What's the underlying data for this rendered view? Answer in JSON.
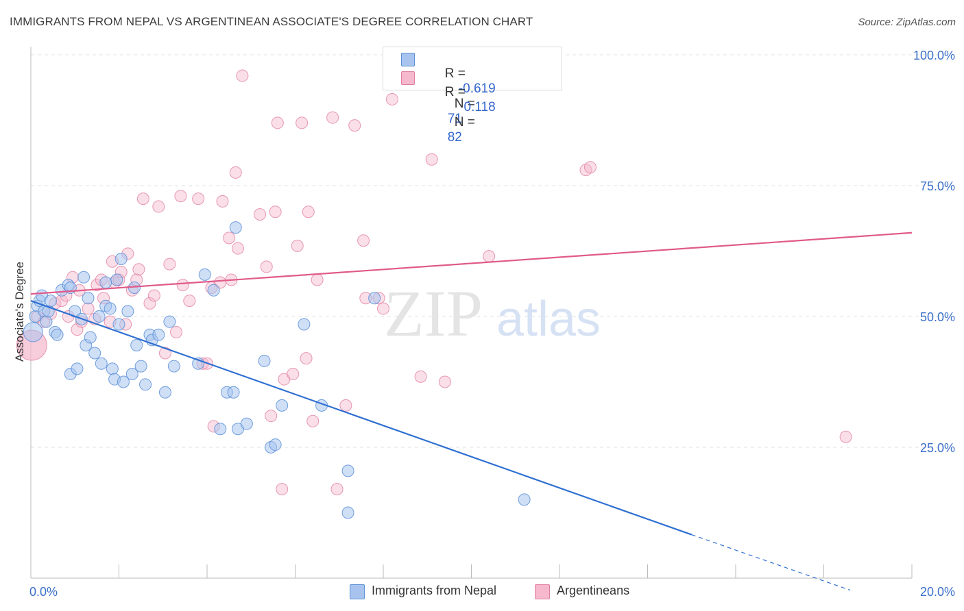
{
  "header": {
    "title": "IMMIGRANTS FROM NEPAL VS ARGENTINEAN ASSOCIATE'S DEGREE CORRELATION CHART",
    "source": "Source: ZipAtlas.com"
  },
  "legend": {
    "rows": [
      {
        "r_label": "R =",
        "r_value": "-0.619",
        "n_label": "N =",
        "n_value": "71"
      },
      {
        "r_label": "R =",
        "r_value": "0.118",
        "n_label": "N =",
        "n_value": "82"
      }
    ],
    "bottom": [
      "Immigrants from Nepal",
      "Argentineans"
    ]
  },
  "watermark": {
    "zip": "ZIP",
    "atlas": "atlas"
  },
  "colors": {
    "nepal_fill": "#a8c4ee",
    "nepal_stroke": "#5b8fd8",
    "nepal_line": "#2e6fd1",
    "arg_fill": "#f5b8cc",
    "arg_stroke": "#e27fa0",
    "arg_line": "#e05a8a",
    "tick_label": "#3a70c8"
  },
  "chart_data": {
    "type": "scatter",
    "title": "IMMIGRANTS FROM NEPAL VS ARGENTINEAN ASSOCIATE'S DEGREE CORRELATION CHART",
    "xlabel": "",
    "ylabel": "Associate's Degree",
    "xlim": [
      0,
      20
    ],
    "ylim": [
      0,
      105
    ],
    "x_tick_labels": [
      "0.0%",
      "20.0%"
    ],
    "y_ticks": [
      25,
      50,
      75,
      100
    ],
    "y_tick_labels": [
      "25.0%",
      "50.0%",
      "75.0%",
      "100.0%"
    ],
    "grid": true,
    "legend_position": "top-center",
    "series": [
      {
        "name": "Immigrants from Nepal",
        "r": -0.619,
        "n": 71,
        "trendline": {
          "x": [
            0,
            15
          ],
          "y": [
            53.0,
            8.3
          ],
          "dashed_to": {
            "x": 18.6,
            "y": -2.3
          }
        },
        "points": [
          [
            0.05,
            47
          ],
          [
            0.1,
            50
          ],
          [
            0.15,
            52
          ],
          [
            0.2,
            53
          ],
          [
            0.25,
            54
          ],
          [
            0.3,
            51
          ],
          [
            0.35,
            49
          ],
          [
            0.4,
            51
          ],
          [
            0.45,
            53
          ],
          [
            0.55,
            47
          ],
          [
            0.6,
            46.5
          ],
          [
            0.7,
            55
          ],
          [
            0.85,
            56
          ],
          [
            0.9,
            55.5
          ],
          [
            0.9,
            39
          ],
          [
            1.0,
            51
          ],
          [
            1.05,
            40
          ],
          [
            1.15,
            49.5
          ],
          [
            1.2,
            57.5
          ],
          [
            1.25,
            44.5
          ],
          [
            1.3,
            53.5
          ],
          [
            1.35,
            46
          ],
          [
            1.45,
            43
          ],
          [
            1.55,
            50
          ],
          [
            1.6,
            41
          ],
          [
            1.7,
            56.5
          ],
          [
            1.7,
            52
          ],
          [
            1.8,
            51.5
          ],
          [
            1.85,
            40
          ],
          [
            1.9,
            38
          ],
          [
            1.95,
            57
          ],
          [
            2.0,
            48.5
          ],
          [
            2.05,
            61
          ],
          [
            2.1,
            37.5
          ],
          [
            2.2,
            51
          ],
          [
            2.3,
            39
          ],
          [
            2.35,
            55.5
          ],
          [
            2.4,
            44.5
          ],
          [
            2.5,
            40.5
          ],
          [
            2.6,
            37
          ],
          [
            2.7,
            46.5
          ],
          [
            2.75,
            45.5
          ],
          [
            2.9,
            46.5
          ],
          [
            3.05,
            35.5
          ],
          [
            3.15,
            49
          ],
          [
            3.25,
            40.5
          ],
          [
            3.8,
            41
          ],
          [
            3.95,
            58
          ],
          [
            4.15,
            55
          ],
          [
            4.3,
            28.5
          ],
          [
            4.45,
            35.5
          ],
          [
            4.6,
            35.5
          ],
          [
            4.65,
            67
          ],
          [
            4.7,
            28.5
          ],
          [
            4.9,
            29.5
          ],
          [
            5.3,
            41.5
          ],
          [
            5.45,
            25
          ],
          [
            5.55,
            25.5
          ],
          [
            5.7,
            33
          ],
          [
            6.2,
            48.5
          ],
          [
            6.6,
            33
          ],
          [
            7.2,
            20.5
          ],
          [
            7.2,
            12.5
          ],
          [
            7.8,
            53.5
          ],
          [
            11.2,
            15
          ]
        ]
      },
      {
        "name": "Argentineans",
        "r": 0.118,
        "n": 82,
        "trendline": {
          "x": [
            0,
            20
          ],
          "y": [
            54.3,
            66.0
          ]
        },
        "points": [
          [
            0.02,
            44.5
          ],
          [
            0.15,
            50
          ],
          [
            0.3,
            49
          ],
          [
            0.45,
            50.5
          ],
          [
            0.55,
            52.5
          ],
          [
            0.7,
            53
          ],
          [
            0.8,
            54
          ],
          [
            0.85,
            50
          ],
          [
            0.95,
            57.5
          ],
          [
            1.05,
            47.5
          ],
          [
            1.1,
            55
          ],
          [
            1.15,
            49
          ],
          [
            1.3,
            51.5
          ],
          [
            1.45,
            49.5
          ],
          [
            1.5,
            56
          ],
          [
            1.6,
            57
          ],
          [
            1.65,
            53.5
          ],
          [
            1.8,
            49
          ],
          [
            1.85,
            60.5
          ],
          [
            1.9,
            56.5
          ],
          [
            2.0,
            57
          ],
          [
            2.05,
            58.5
          ],
          [
            2.15,
            48.5
          ],
          [
            2.2,
            62
          ],
          [
            2.3,
            55
          ],
          [
            2.4,
            57
          ],
          [
            2.45,
            59
          ],
          [
            2.55,
            72.5
          ],
          [
            2.7,
            52.5
          ],
          [
            2.8,
            54
          ],
          [
            2.9,
            71
          ],
          [
            3.05,
            43
          ],
          [
            3.15,
            60
          ],
          [
            3.3,
            47
          ],
          [
            3.4,
            73
          ],
          [
            3.45,
            56
          ],
          [
            3.6,
            53
          ],
          [
            3.8,
            72.5
          ],
          [
            3.9,
            41
          ],
          [
            4.0,
            41
          ],
          [
            4.1,
            55.5
          ],
          [
            4.15,
            29
          ],
          [
            4.3,
            56.5
          ],
          [
            4.35,
            72
          ],
          [
            4.5,
            65
          ],
          [
            4.55,
            57
          ],
          [
            4.65,
            77.5
          ],
          [
            4.7,
            63
          ],
          [
            4.8,
            96
          ],
          [
            5.2,
            69.5
          ],
          [
            5.35,
            59.5
          ],
          [
            5.45,
            31
          ],
          [
            5.55,
            70
          ],
          [
            5.6,
            87
          ],
          [
            5.7,
            17
          ],
          [
            5.75,
            38
          ],
          [
            5.95,
            39
          ],
          [
            6.05,
            63.5
          ],
          [
            6.15,
            87
          ],
          [
            6.25,
            42
          ],
          [
            6.3,
            70
          ],
          [
            6.4,
            30
          ],
          [
            6.5,
            57
          ],
          [
            6.85,
            88
          ],
          [
            6.95,
            17
          ],
          [
            7.15,
            33
          ],
          [
            7.35,
            86.5
          ],
          [
            7.55,
            64.5
          ],
          [
            7.6,
            53.5
          ],
          [
            7.9,
            53.5
          ],
          [
            8.0,
            51.5
          ],
          [
            8.2,
            91.5
          ],
          [
            8.85,
            38.5
          ],
          [
            9.1,
            80
          ],
          [
            9.4,
            37.5
          ],
          [
            10.4,
            61.5
          ],
          [
            12.6,
            78
          ],
          [
            12.7,
            78.5
          ],
          [
            18.5,
            27
          ]
        ]
      }
    ]
  }
}
